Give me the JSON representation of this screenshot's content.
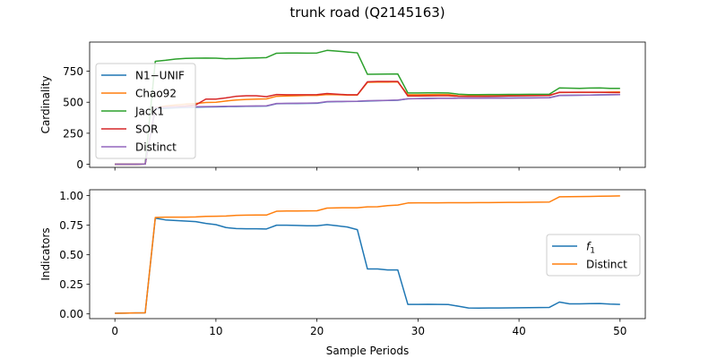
{
  "figure": {
    "title": "trunk road (Q2145163)"
  },
  "chart_data": [
    {
      "type": "line",
      "title": "",
      "xlabel": "",
      "ylabel": "Cardinality",
      "xlim": [
        -2.5,
        52.5
      ],
      "ylim": [
        -25,
        985
      ],
      "xticks": [
        0,
        10,
        20,
        30,
        40,
        50
      ],
      "yticks": [
        0,
        250,
        500,
        750
      ],
      "ytick_labels": [
        "0",
        "250",
        "500",
        "750"
      ],
      "show_xtick_labels": false,
      "grid": false,
      "legend_position": "center-left",
      "x": [
        0,
        1,
        2,
        3,
        4,
        5,
        6,
        7,
        8,
        9,
        10,
        11,
        12,
        13,
        14,
        15,
        16,
        17,
        18,
        19,
        20,
        21,
        22,
        23,
        24,
        25,
        26,
        27,
        28,
        29,
        30,
        31,
        32,
        33,
        34,
        35,
        36,
        37,
        38,
        39,
        40,
        41,
        42,
        43,
        44,
        45,
        46,
        47,
        48,
        49,
        50
      ],
      "series": [
        {
          "name": "N1−UNIF",
          "color": "#1f77b4",
          "values": [
            0,
            0,
            0,
            2,
            445,
            450,
            455,
            458,
            460,
            462,
            463,
            465,
            466,
            467,
            468,
            469,
            488,
            490,
            490,
            491,
            492,
            503,
            505,
            506,
            507,
            510,
            512,
            514,
            516,
            528,
            530,
            531,
            532,
            532,
            533,
            533,
            533,
            534,
            534,
            534,
            535,
            535,
            536,
            537,
            555,
            556,
            557,
            558,
            559,
            560,
            561
          ]
        },
        {
          "name": "Chao92",
          "color": "#ff7f0e",
          "values": [
            0,
            0,
            0,
            2,
            455,
            470,
            478,
            485,
            490,
            498,
            500,
            510,
            518,
            522,
            525,
            527,
            548,
            550,
            552,
            555,
            555,
            562,
            560,
            558,
            558,
            660,
            662,
            662,
            664,
            560,
            560,
            561,
            562,
            562,
            552,
            551,
            551,
            552,
            553,
            554,
            555,
            556,
            557,
            558,
            578,
            579,
            580,
            580,
            580,
            582,
            583
          ]
        },
        {
          "name": "Jack1",
          "color": "#2ca02c",
          "values": [
            0,
            0,
            0,
            2,
            830,
            838,
            848,
            853,
            855,
            856,
            855,
            851,
            852,
            855,
            857,
            860,
            895,
            897,
            897,
            896,
            897,
            918,
            912,
            905,
            898,
            725,
            726,
            727,
            728,
            575,
            575,
            576,
            576,
            575,
            565,
            561,
            561,
            562,
            562,
            563,
            563,
            564,
            564,
            565,
            615,
            613,
            612,
            614,
            615,
            612,
            612
          ]
        },
        {
          "name": "SOR",
          "color": "#d62728",
          "values": [
            0,
            0,
            0,
            2,
            455,
            460,
            465,
            470,
            478,
            525,
            525,
            535,
            548,
            552,
            552,
            545,
            562,
            560,
            560,
            560,
            561,
            570,
            565,
            560,
            560,
            665,
            668,
            668,
            668,
            550,
            550,
            551,
            552,
            552,
            548,
            547,
            547,
            548,
            549,
            550,
            551,
            552,
            553,
            554,
            580,
            580,
            580,
            580,
            580,
            578,
            577
          ]
        },
        {
          "name": "Distinct",
          "color": "#9467bd",
          "values": [
            0,
            0,
            0,
            2,
            455,
            458,
            460,
            462,
            464,
            465,
            466,
            467,
            468,
            469,
            470,
            471,
            490,
            491,
            492,
            493,
            494,
            505,
            506,
            507,
            508,
            512,
            513,
            515,
            518,
            528,
            529,
            530,
            531,
            531,
            532,
            532,
            532,
            533,
            533,
            533,
            534,
            534,
            535,
            536,
            555,
            556,
            557,
            558,
            559,
            560,
            561
          ]
        }
      ]
    },
    {
      "type": "line",
      "title": "",
      "xlabel": "Sample Periods",
      "ylabel": "Indicators",
      "xlim": [
        -2.5,
        52.5
      ],
      "ylim": [
        -0.04,
        1.05
      ],
      "xticks": [
        0,
        10,
        20,
        30,
        40,
        50
      ],
      "yticks": [
        0.0,
        0.25,
        0.5,
        0.75,
        1.0
      ],
      "ytick_labels": [
        "0.00",
        "0.25",
        "0.50",
        "0.75",
        "1.00"
      ],
      "show_xtick_labels": true,
      "grid": false,
      "legend_position": "center-right",
      "x": [
        0,
        1,
        2,
        3,
        4,
        5,
        6,
        7,
        8,
        9,
        10,
        11,
        12,
        13,
        14,
        15,
        16,
        17,
        18,
        19,
        20,
        21,
        22,
        23,
        24,
        25,
        26,
        27,
        28,
        29,
        30,
        31,
        32,
        33,
        34,
        35,
        36,
        37,
        38,
        39,
        40,
        41,
        42,
        43,
        44,
        45,
        46,
        47,
        48,
        49,
        50
      ],
      "series": [
        {
          "name": "f",
          "name_sub": "1",
          "color": "#1f77b4",
          "values": [
            0.005,
            0.006,
            0.008,
            0.009,
            0.81,
            0.795,
            0.79,
            0.785,
            0.78,
            0.765,
            0.755,
            0.73,
            0.722,
            0.72,
            0.72,
            0.718,
            0.75,
            0.75,
            0.748,
            0.745,
            0.745,
            0.755,
            0.745,
            0.735,
            0.712,
            0.38,
            0.38,
            0.372,
            0.372,
            0.08,
            0.08,
            0.081,
            0.08,
            0.079,
            0.065,
            0.05,
            0.049,
            0.05,
            0.05,
            0.051,
            0.052,
            0.053,
            0.054,
            0.055,
            0.1,
            0.085,
            0.085,
            0.087,
            0.088,
            0.083,
            0.08
          ]
        },
        {
          "name": "Distinct",
          "color": "#ff7f0e",
          "values": [
            0.005,
            0.006,
            0.008,
            0.009,
            0.815,
            0.818,
            0.818,
            0.818,
            0.82,
            0.825,
            0.826,
            0.828,
            0.833,
            0.835,
            0.836,
            0.836,
            0.868,
            0.87,
            0.87,
            0.871,
            0.872,
            0.895,
            0.897,
            0.898,
            0.898,
            0.905,
            0.906,
            0.916,
            0.92,
            0.938,
            0.939,
            0.939,
            0.939,
            0.94,
            0.94,
            0.94,
            0.941,
            0.941,
            0.942,
            0.943,
            0.943,
            0.944,
            0.945,
            0.946,
            0.99,
            0.991,
            0.992,
            0.993,
            0.995,
            0.996,
            0.998
          ]
        }
      ]
    }
  ]
}
